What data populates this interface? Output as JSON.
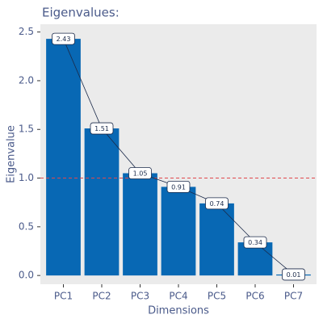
{
  "chart_data": {
    "type": "bar",
    "title": "Eigenvalues:",
    "x_label": "Dimensions",
    "y_label": "Eigenvalue",
    "categories": [
      "PC1",
      "PC2",
      "PC3",
      "PC4",
      "PC5",
      "PC6",
      "PC7"
    ],
    "values": [
      2.43,
      1.51,
      1.05,
      0.91,
      0.74,
      0.34,
      0.01
    ],
    "color": "#0868b4",
    "line_color": "#1b2a4a",
    "reference_line": 1,
    "reference_color": "#e0474c",
    "ylim": [
      -0.09,
      2.58
    ],
    "yticks": [
      {
        "value": 0,
        "label": "0.0"
      },
      0.5,
      {
        "value": 1,
        "label": "1.0"
      },
      1.5,
      {
        "value": 2,
        "label": "2.0"
      },
      2.5
    ]
  }
}
